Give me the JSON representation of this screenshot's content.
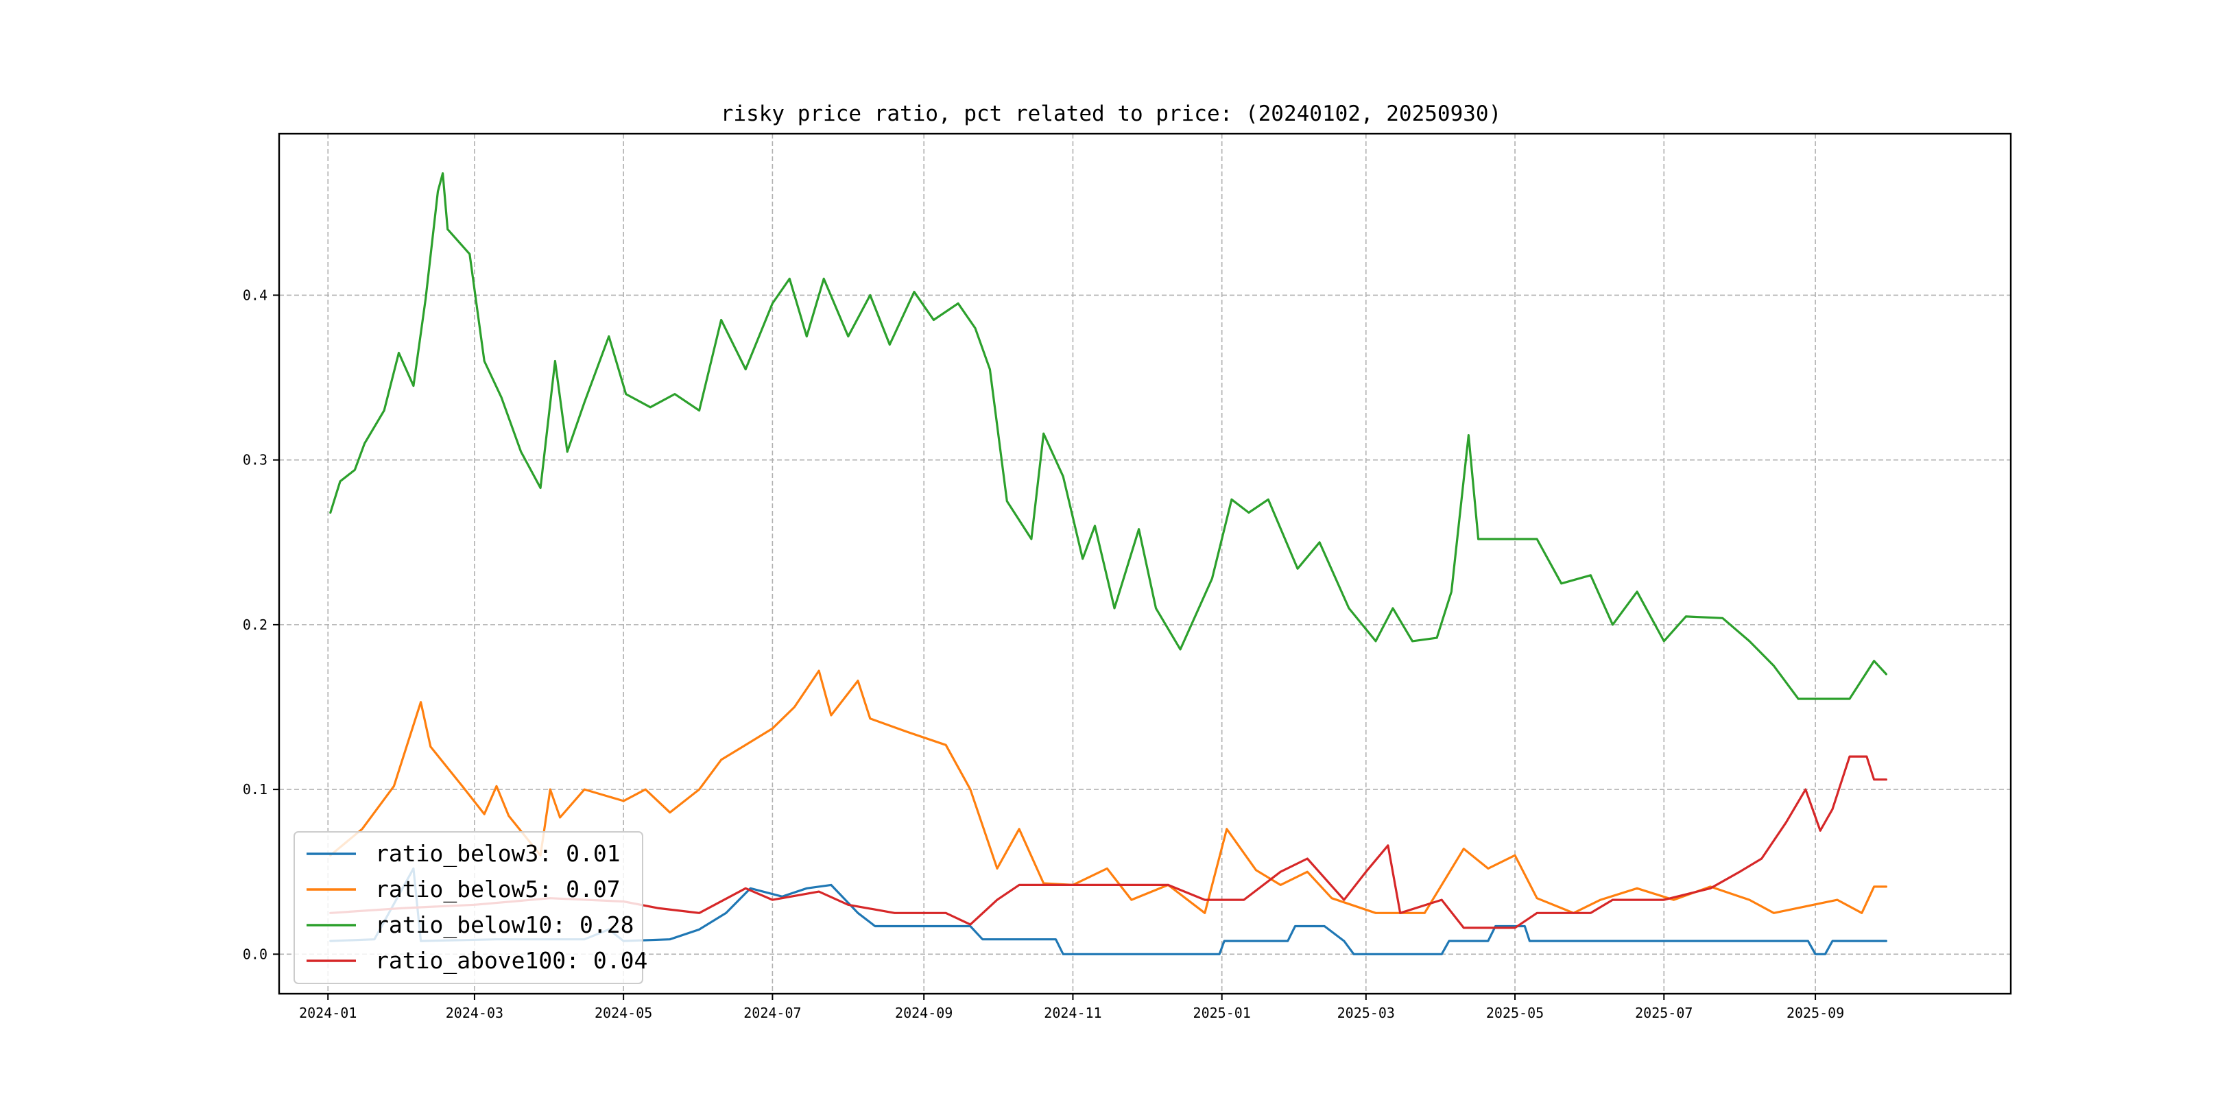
{
  "chart_data": {
    "type": "line",
    "title": "risky price ratio, pct related to price: (20240102, 20250930)",
    "xlabel": "",
    "ylabel": "",
    "x_range": [
      "2023-12-12",
      "2025-11-20"
    ],
    "ylim": [
      -0.024,
      0.498
    ],
    "grid": true,
    "legend_position": "lower-left",
    "x_ticks": [
      {
        "date": "2024-01-01",
        "label": "2024-01"
      },
      {
        "date": "2024-03-01",
        "label": "2024-03"
      },
      {
        "date": "2024-05-01",
        "label": "2024-05"
      },
      {
        "date": "2024-07-01",
        "label": "2024-07"
      },
      {
        "date": "2024-09-01",
        "label": "2024-09"
      },
      {
        "date": "2024-11-01",
        "label": "2024-11"
      },
      {
        "date": "2025-01-01",
        "label": "2025-01"
      },
      {
        "date": "2025-03-01",
        "label": "2025-03"
      },
      {
        "date": "2025-05-01",
        "label": "2025-05"
      },
      {
        "date": "2025-07-01",
        "label": "2025-07"
      },
      {
        "date": "2025-09-01",
        "label": "2025-09"
      }
    ],
    "y_ticks": [
      {
        "value": 0.0,
        "label": "0.0"
      },
      {
        "value": 0.1,
        "label": "0.1"
      },
      {
        "value": 0.2,
        "label": "0.2"
      },
      {
        "value": 0.3,
        "label": "0.3"
      },
      {
        "value": 0.4,
        "label": "0.4"
      }
    ],
    "series": [
      {
        "name": "ratio_below3",
        "label": "ratio_below3: 0.01",
        "color": "#1f77b4",
        "points": [
          [
            "2024-01-02",
            0.008
          ],
          [
            "2024-01-20",
            0.009
          ],
          [
            "2024-02-05",
            0.052
          ],
          [
            "2024-02-08",
            0.008
          ],
          [
            "2024-03-10",
            0.009
          ],
          [
            "2024-04-15",
            0.009
          ],
          [
            "2024-04-25",
            0.015
          ],
          [
            "2024-05-01",
            0.008
          ],
          [
            "2024-05-20",
            0.009
          ],
          [
            "2024-06-01",
            0.015
          ],
          [
            "2024-06-12",
            0.025
          ],
          [
            "2024-06-22",
            0.04
          ],
          [
            "2024-07-05",
            0.035
          ],
          [
            "2024-07-15",
            0.04
          ],
          [
            "2024-07-25",
            0.042
          ],
          [
            "2024-08-05",
            0.025
          ],
          [
            "2024-08-12",
            0.017
          ],
          [
            "2024-08-25",
            0.017
          ],
          [
            "2024-09-20",
            0.017
          ],
          [
            "2024-09-25",
            0.009
          ],
          [
            "2024-10-25",
            0.009
          ],
          [
            "2024-10-28",
            0.0
          ],
          [
            "2024-12-31",
            0.0
          ],
          [
            "2025-01-02",
            0.008
          ],
          [
            "2025-01-28",
            0.008
          ],
          [
            "2025-01-31",
            0.017
          ],
          [
            "2025-02-12",
            0.017
          ],
          [
            "2025-02-20",
            0.008
          ],
          [
            "2025-02-24",
            0.0
          ],
          [
            "2025-04-01",
            0.0
          ],
          [
            "2025-04-04",
            0.008
          ],
          [
            "2025-04-20",
            0.008
          ],
          [
            "2025-04-23",
            0.017
          ],
          [
            "2025-05-05",
            0.017
          ],
          [
            "2025-05-07",
            0.008
          ],
          [
            "2025-08-29",
            0.008
          ],
          [
            "2025-09-01",
            0.0
          ],
          [
            "2025-09-05",
            0.0
          ],
          [
            "2025-09-08",
            0.008
          ],
          [
            "2025-09-30",
            0.008
          ]
        ]
      },
      {
        "name": "ratio_below5",
        "label": "ratio_below5: 0.07",
        "color": "#ff7f0e",
        "points": [
          [
            "2024-01-02",
            0.06
          ],
          [
            "2024-01-15",
            0.076
          ],
          [
            "2024-01-28",
            0.102
          ],
          [
            "2024-02-08",
            0.153
          ],
          [
            "2024-02-12",
            0.126
          ],
          [
            "2024-02-25",
            0.102
          ],
          [
            "2024-03-05",
            0.085
          ],
          [
            "2024-03-10",
            0.102
          ],
          [
            "2024-03-15",
            0.084
          ],
          [
            "2024-03-28",
            0.06
          ],
          [
            "2024-04-01",
            0.1
          ],
          [
            "2024-04-05",
            0.083
          ],
          [
            "2024-04-15",
            0.1
          ],
          [
            "2024-05-01",
            0.093
          ],
          [
            "2024-05-10",
            0.1
          ],
          [
            "2024-05-20",
            0.086
          ],
          [
            "2024-06-01",
            0.1
          ],
          [
            "2024-06-10",
            0.118
          ],
          [
            "2024-06-20",
            0.127
          ],
          [
            "2024-07-01",
            0.137
          ],
          [
            "2024-07-10",
            0.15
          ],
          [
            "2024-07-20",
            0.172
          ],
          [
            "2024-07-25",
            0.145
          ],
          [
            "2024-08-05",
            0.166
          ],
          [
            "2024-08-10",
            0.143
          ],
          [
            "2024-08-25",
            0.135
          ],
          [
            "2024-09-10",
            0.127
          ],
          [
            "2024-09-20",
            0.1
          ],
          [
            "2024-10-01",
            0.052
          ],
          [
            "2024-10-10",
            0.076
          ],
          [
            "2024-10-20",
            0.043
          ],
          [
            "2024-11-01",
            0.042
          ],
          [
            "2024-11-15",
            0.052
          ],
          [
            "2024-11-25",
            0.033
          ],
          [
            "2024-12-10",
            0.042
          ],
          [
            "2024-12-25",
            0.025
          ],
          [
            "2025-01-03",
            0.076
          ],
          [
            "2025-01-15",
            0.051
          ],
          [
            "2025-01-25",
            0.042
          ],
          [
            "2025-02-05",
            0.05
          ],
          [
            "2025-02-15",
            0.034
          ],
          [
            "2025-03-05",
            0.025
          ],
          [
            "2025-03-25",
            0.025
          ],
          [
            "2025-04-10",
            0.064
          ],
          [
            "2025-04-20",
            0.052
          ],
          [
            "2025-05-01",
            0.06
          ],
          [
            "2025-05-10",
            0.034
          ],
          [
            "2025-05-25",
            0.025
          ],
          [
            "2025-06-05",
            0.033
          ],
          [
            "2025-06-20",
            0.04
          ],
          [
            "2025-07-05",
            0.033
          ],
          [
            "2025-07-20",
            0.041
          ],
          [
            "2025-08-05",
            0.033
          ],
          [
            "2025-08-15",
            0.025
          ],
          [
            "2025-09-10",
            0.033
          ],
          [
            "2025-09-20",
            0.025
          ],
          [
            "2025-09-25",
            0.041
          ],
          [
            "2025-09-30",
            0.041
          ]
        ]
      },
      {
        "name": "ratio_below10",
        "label": "ratio_below10: 0.28",
        "color": "#2ca02c",
        "points": [
          [
            "2024-01-02",
            0.268
          ],
          [
            "2024-01-06",
            0.287
          ],
          [
            "2024-01-12",
            0.294
          ],
          [
            "2024-01-16",
            0.31
          ],
          [
            "2024-01-24",
            0.33
          ],
          [
            "2024-01-30",
            0.365
          ],
          [
            "2024-02-05",
            0.345
          ],
          [
            "2024-02-10",
            0.398
          ],
          [
            "2024-02-15",
            0.463
          ],
          [
            "2024-02-17",
            0.474
          ],
          [
            "2024-02-19",
            0.44
          ],
          [
            "2024-02-28",
            0.425
          ],
          [
            "2024-03-05",
            0.36
          ],
          [
            "2024-03-12",
            0.338
          ],
          [
            "2024-03-20",
            0.305
          ],
          [
            "2024-03-28",
            0.283
          ],
          [
            "2024-04-03",
            0.36
          ],
          [
            "2024-04-08",
            0.305
          ],
          [
            "2024-04-15",
            0.335
          ],
          [
            "2024-04-25",
            0.375
          ],
          [
            "2024-05-02",
            0.34
          ],
          [
            "2024-05-12",
            0.332
          ],
          [
            "2024-05-22",
            0.34
          ],
          [
            "2024-06-01",
            0.33
          ],
          [
            "2024-06-10",
            0.385
          ],
          [
            "2024-06-20",
            0.355
          ],
          [
            "2024-07-01",
            0.395
          ],
          [
            "2024-07-08",
            0.41
          ],
          [
            "2024-07-15",
            0.375
          ],
          [
            "2024-07-22",
            0.41
          ],
          [
            "2024-08-01",
            0.375
          ],
          [
            "2024-08-10",
            0.4
          ],
          [
            "2024-08-18",
            0.37
          ],
          [
            "2024-08-28",
            0.402
          ],
          [
            "2024-09-05",
            0.385
          ],
          [
            "2024-09-15",
            0.395
          ],
          [
            "2024-09-22",
            0.38
          ],
          [
            "2024-09-28",
            0.355
          ],
          [
            "2024-10-05",
            0.275
          ],
          [
            "2024-10-15",
            0.252
          ],
          [
            "2024-10-20",
            0.316
          ],
          [
            "2024-10-28",
            0.29
          ],
          [
            "2024-11-05",
            0.24
          ],
          [
            "2024-11-10",
            0.26
          ],
          [
            "2024-11-18",
            0.21
          ],
          [
            "2024-11-28",
            0.258
          ],
          [
            "2024-12-05",
            0.21
          ],
          [
            "2024-12-15",
            0.185
          ],
          [
            "2024-12-28",
            0.228
          ],
          [
            "2025-01-05",
            0.276
          ],
          [
            "2025-01-12",
            0.268
          ],
          [
            "2025-01-20",
            0.276
          ],
          [
            "2025-02-01",
            0.234
          ],
          [
            "2025-02-10",
            0.25
          ],
          [
            "2025-02-22",
            0.21
          ],
          [
            "2025-03-05",
            0.19
          ],
          [
            "2025-03-12",
            0.21
          ],
          [
            "2025-03-20",
            0.19
          ],
          [
            "2025-03-30",
            0.192
          ],
          [
            "2025-04-05",
            0.22
          ],
          [
            "2025-04-12",
            0.315
          ],
          [
            "2025-04-16",
            0.252
          ],
          [
            "2025-05-10",
            0.252
          ],
          [
            "2025-05-20",
            0.225
          ],
          [
            "2025-06-01",
            0.23
          ],
          [
            "2025-06-10",
            0.2
          ],
          [
            "2025-06-20",
            0.22
          ],
          [
            "2025-07-01",
            0.19
          ],
          [
            "2025-07-10",
            0.205
          ],
          [
            "2025-07-25",
            0.204
          ],
          [
            "2025-08-05",
            0.19
          ],
          [
            "2025-08-15",
            0.175
          ],
          [
            "2025-08-25",
            0.155
          ],
          [
            "2025-09-05",
            0.155
          ],
          [
            "2025-09-15",
            0.155
          ],
          [
            "2025-09-25",
            0.178
          ],
          [
            "2025-09-30",
            0.17
          ]
        ]
      },
      {
        "name": "ratio_above100",
        "label": "ratio_above100: 0.04",
        "color": "#d62728",
        "points": [
          [
            "2024-01-02",
            0.025
          ],
          [
            "2024-02-01",
            0.028
          ],
          [
            "2024-03-01",
            0.03
          ],
          [
            "2024-04-01",
            0.034
          ],
          [
            "2024-05-01",
            0.032
          ],
          [
            "2024-05-15",
            0.028
          ],
          [
            "2024-06-01",
            0.025
          ],
          [
            "2024-06-20",
            0.04
          ],
          [
            "2024-07-01",
            0.033
          ],
          [
            "2024-07-20",
            0.038
          ],
          [
            "2024-08-01",
            0.03
          ],
          [
            "2024-08-20",
            0.025
          ],
          [
            "2024-09-10",
            0.025
          ],
          [
            "2024-09-20",
            0.018
          ],
          [
            "2024-10-01",
            0.033
          ],
          [
            "2024-10-10",
            0.042
          ],
          [
            "2024-11-01",
            0.042
          ],
          [
            "2024-11-20",
            0.042
          ],
          [
            "2024-12-10",
            0.042
          ],
          [
            "2024-12-25",
            0.033
          ],
          [
            "2025-01-10",
            0.033
          ],
          [
            "2025-01-25",
            0.05
          ],
          [
            "2025-02-05",
            0.058
          ],
          [
            "2025-02-20",
            0.033
          ],
          [
            "2025-03-01",
            0.05
          ],
          [
            "2025-03-10",
            0.066
          ],
          [
            "2025-03-15",
            0.025
          ],
          [
            "2025-04-01",
            0.033
          ],
          [
            "2025-04-10",
            0.016
          ],
          [
            "2025-05-01",
            0.016
          ],
          [
            "2025-05-10",
            0.025
          ],
          [
            "2025-06-01",
            0.025
          ],
          [
            "2025-06-10",
            0.033
          ],
          [
            "2025-07-01",
            0.033
          ],
          [
            "2025-07-20",
            0.04
          ],
          [
            "2025-08-01",
            0.05
          ],
          [
            "2025-08-10",
            0.058
          ],
          [
            "2025-08-20",
            0.08
          ],
          [
            "2025-08-28",
            0.1
          ],
          [
            "2025-09-03",
            0.075
          ],
          [
            "2025-09-08",
            0.088
          ],
          [
            "2025-09-15",
            0.12
          ],
          [
            "2025-09-22",
            0.12
          ],
          [
            "2025-09-25",
            0.106
          ],
          [
            "2025-09-30",
            0.106
          ]
        ]
      }
    ]
  }
}
